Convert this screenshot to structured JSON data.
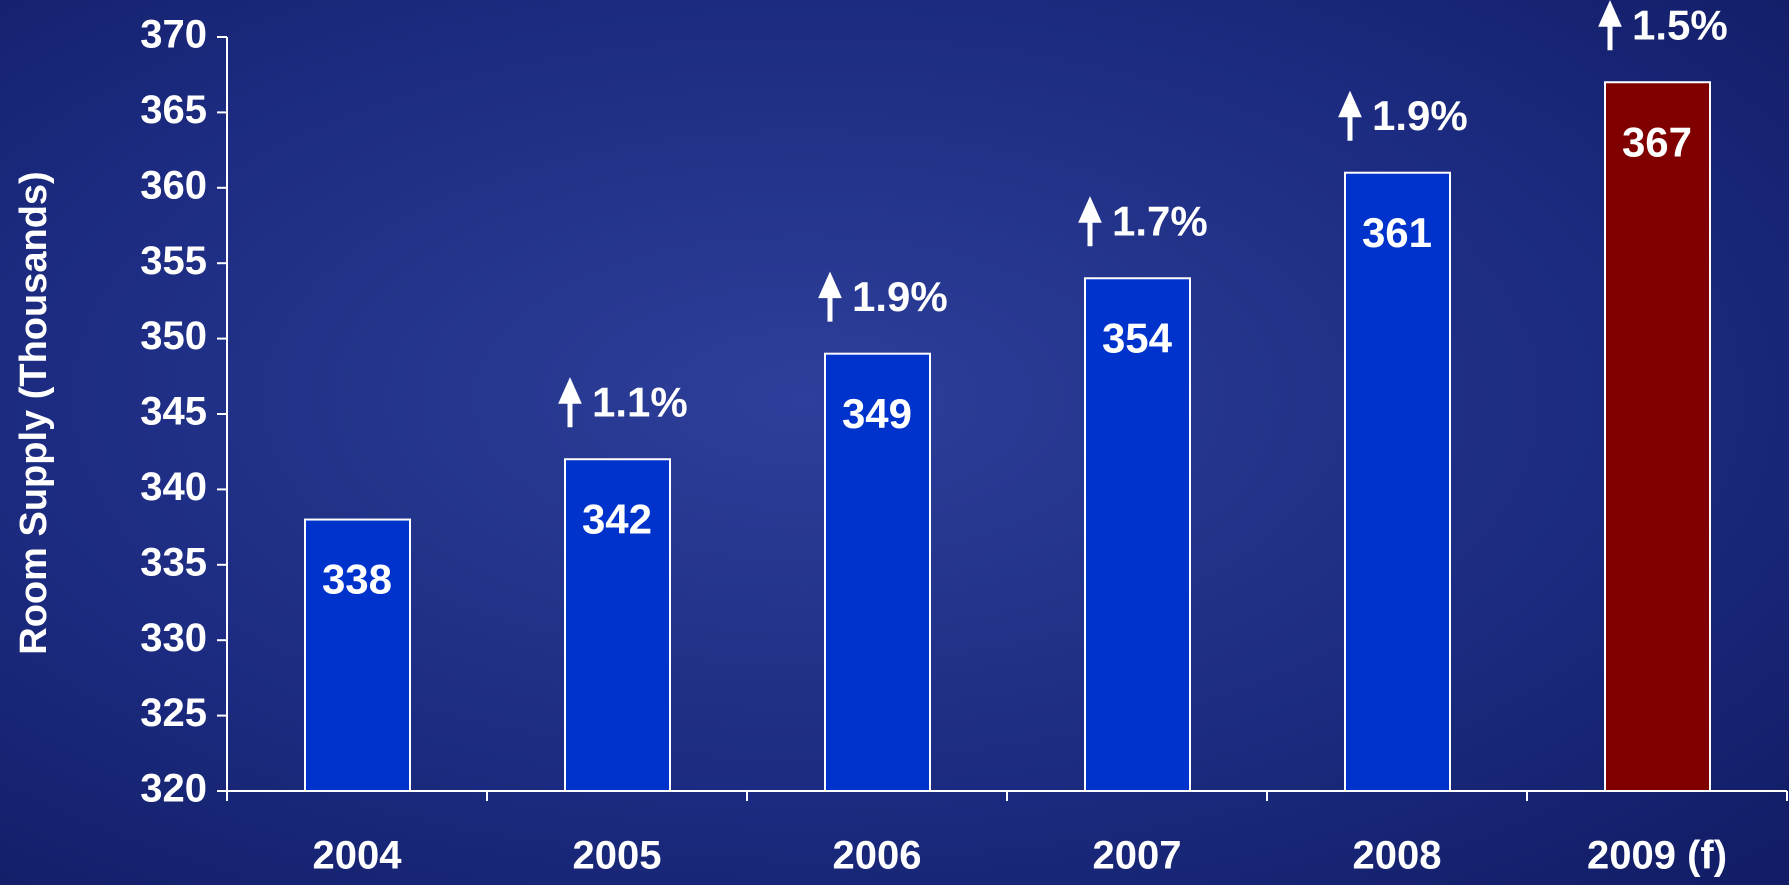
{
  "chart_data": {
    "type": "bar",
    "y_label": "Room Supply (Thousands)",
    "categories": [
      "2004",
      "2005",
      "2006",
      "2007",
      "2008",
      "2009 (f)"
    ],
    "values": [
      338,
      342,
      349,
      354,
      361,
      367
    ],
    "colors": [
      "#0033cc",
      "#0033cc",
      "#0033cc",
      "#0033cc",
      "#0033cc",
      "#800000"
    ],
    "annotations": [
      null,
      "1.1%",
      "1.9%",
      "1.7%",
      "1.9%",
      "1.5%"
    ],
    "ylim": [
      320,
      370
    ],
    "yticks": [
      320,
      325,
      330,
      335,
      340,
      345,
      350,
      355,
      360,
      365,
      370
    ],
    "grid": false
  }
}
